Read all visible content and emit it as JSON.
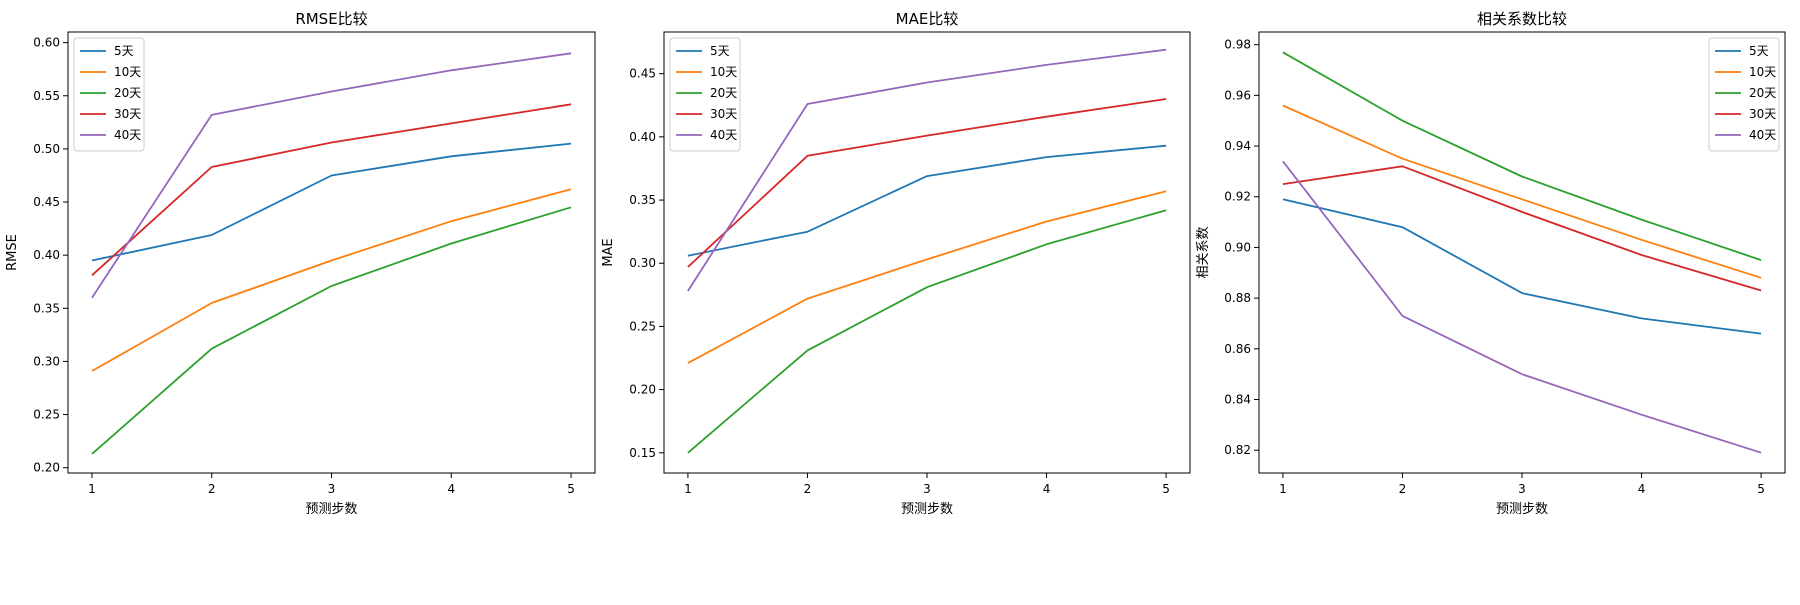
{
  "figure": {
    "colors": {
      "5天": "#1f77b4",
      "10天": "#ff7f0e",
      "20天": "#2ca02c",
      "30天": "#d62728",
      "40天": "#9467bd"
    }
  },
  "chart_data": [
    {
      "type": "line",
      "title": "RMSE比较",
      "xlabel": "预测步数",
      "ylabel": "RMSE",
      "x": [
        1,
        2,
        3,
        4,
        5
      ],
      "xticks": [
        "1",
        "2",
        "3",
        "4",
        "5"
      ],
      "xlim": [
        0.8,
        5.2
      ],
      "ylim": [
        0.195,
        0.61
      ],
      "yticks": [
        "0.20",
        "0.25",
        "0.30",
        "0.35",
        "0.40",
        "0.45",
        "0.50",
        "0.55",
        "0.60"
      ],
      "legend_position": "upper-left",
      "grid": false,
      "series": [
        {
          "name": "5天",
          "values": [
            0.395,
            0.419,
            0.475,
            0.493,
            0.505
          ]
        },
        {
          "name": "10天",
          "values": [
            0.291,
            0.355,
            0.395,
            0.432,
            0.462
          ]
        },
        {
          "name": "20天",
          "values": [
            0.213,
            0.312,
            0.371,
            0.411,
            0.445
          ]
        },
        {
          "name": "30天",
          "values": [
            0.381,
            0.483,
            0.506,
            0.524,
            0.542
          ]
        },
        {
          "name": "40天",
          "values": [
            0.36,
            0.532,
            0.554,
            0.574,
            0.59
          ]
        }
      ]
    },
    {
      "type": "line",
      "title": "MAE比较",
      "xlabel": "预测步数",
      "ylabel": "MAE",
      "x": [
        1,
        2,
        3,
        4,
        5
      ],
      "xticks": [
        "1",
        "2",
        "3",
        "4",
        "5"
      ],
      "xlim": [
        0.8,
        5.2
      ],
      "ylim": [
        0.134,
        0.483
      ],
      "yticks": [
        "0.15",
        "0.20",
        "0.25",
        "0.30",
        "0.35",
        "0.40",
        "0.45"
      ],
      "legend_position": "upper-left",
      "grid": false,
      "series": [
        {
          "name": "5天",
          "values": [
            0.306,
            0.325,
            0.369,
            0.384,
            0.393
          ]
        },
        {
          "name": "10天",
          "values": [
            0.221,
            0.272,
            0.303,
            0.333,
            0.357
          ]
        },
        {
          "name": "20天",
          "values": [
            0.15,
            0.231,
            0.281,
            0.315,
            0.342
          ]
        },
        {
          "name": "30天",
          "values": [
            0.297,
            0.385,
            0.401,
            0.416,
            0.43
          ]
        },
        {
          "name": "40天",
          "values": [
            0.278,
            0.426,
            0.443,
            0.457,
            0.469
          ]
        }
      ]
    },
    {
      "type": "line",
      "title": "相关系数比较",
      "xlabel": "预测步数",
      "ylabel": "相关系数",
      "x": [
        1,
        2,
        3,
        4,
        5
      ],
      "xticks": [
        "1",
        "2",
        "3",
        "4",
        "5"
      ],
      "xlim": [
        0.8,
        5.2
      ],
      "ylim": [
        0.811,
        0.985
      ],
      "yticks": [
        "0.82",
        "0.84",
        "0.86",
        "0.88",
        "0.90",
        "0.92",
        "0.94",
        "0.96",
        "0.98"
      ],
      "legend_position": "upper-right",
      "grid": false,
      "series": [
        {
          "name": "5天",
          "values": [
            0.919,
            0.908,
            0.882,
            0.872,
            0.866
          ]
        },
        {
          "name": "10天",
          "values": [
            0.956,
            0.935,
            0.919,
            0.903,
            0.888
          ]
        },
        {
          "name": "20天",
          "values": [
            0.977,
            0.95,
            0.928,
            0.911,
            0.895
          ]
        },
        {
          "name": "30天",
          "values": [
            0.925,
            0.932,
            0.914,
            0.897,
            0.883
          ]
        },
        {
          "name": "40天",
          "values": [
            0.934,
            0.873,
            0.85,
            0.834,
            0.819
          ]
        }
      ]
    }
  ]
}
